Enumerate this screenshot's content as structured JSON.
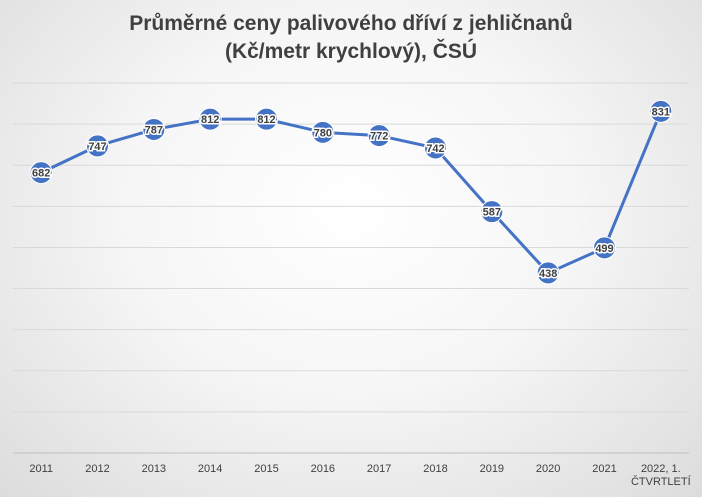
{
  "chart_data": {
    "type": "line",
    "title_lines": [
      "Průměrné ceny palivového dříví z jehličnanů",
      "(Kč/metr krychlový), ČSÚ"
    ],
    "xlabel": "",
    "ylabel": "",
    "categories": [
      "2011",
      "2012",
      "2013",
      "2014",
      "2015",
      "2016",
      "2017",
      "2018",
      "2019",
      "2020",
      "2021",
      "2022, 1. ČTVRTLETÍ"
    ],
    "series": [
      {
        "values": [
          682,
          747,
          787,
          812,
          812,
          780,
          772,
          742,
          587,
          438,
          499,
          831
        ]
      }
    ],
    "ylim": [
      0,
      900
    ],
    "y_grid_step": 100,
    "y_tick_labels_shown": false,
    "grid": true,
    "legend": "none",
    "colors": {
      "line": "#4472C4",
      "marker": "#4472C4",
      "grid": "#d9d9d9",
      "text": "#404040"
    }
  }
}
